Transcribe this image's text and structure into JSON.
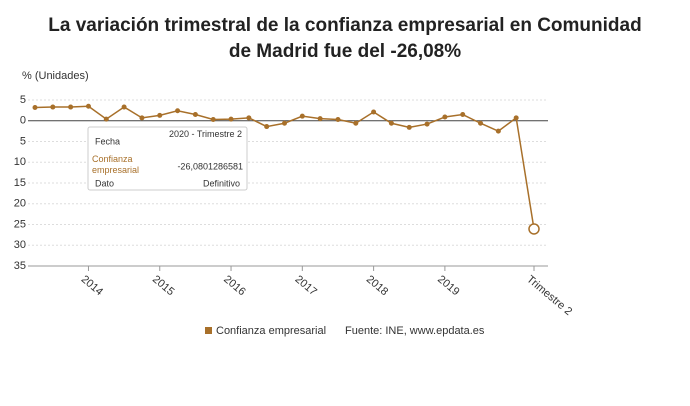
{
  "chart_data": {
    "type": "line",
    "title_lines": [
      "La variación trimestral de la confianza empresarial en Comunidad",
      "de Madrid fue del -26,08%"
    ],
    "y_axis_label": "% (Unidades)",
    "categories": [
      null,
      null,
      null,
      "2014",
      null,
      null,
      null,
      "2015",
      null,
      null,
      null,
      "2016",
      null,
      null,
      null,
      "2017",
      null,
      null,
      null,
      "2018",
      null,
      null,
      null,
      "2019",
      null,
      null,
      null,
      null,
      "Trimestre 2"
    ],
    "series": [
      {
        "name": "Confianza empresarial",
        "color": "#a8702a",
        "values": [
          3.2,
          3.3,
          3.3,
          3.5,
          0.4,
          3.3,
          0.7,
          1.3,
          2.4,
          1.5,
          0.3,
          0.4,
          0.7,
          -1.4,
          -0.6,
          1.1,
          0.5,
          0.3,
          -0.6,
          2.1,
          -0.6,
          -1.6,
          -0.8,
          0.9,
          1.5,
          -0.6,
          -2.5,
          0.7,
          -26.08
        ]
      }
    ],
    "ylim": [
      -35,
      5
    ],
    "yticks": [
      {
        "value": 5,
        "label": "5"
      },
      0,
      {
        "value": -5,
        "label": "5"
      },
      {
        "value": -10,
        "label": "10"
      },
      {
        "value": -15,
        "label": "15"
      },
      {
        "value": -20,
        "label": "20"
      },
      {
        "value": -25,
        "label": "25"
      },
      {
        "value": -30,
        "label": "30"
      },
      {
        "value": -35,
        "label": "35"
      }
    ],
    "grid": true,
    "tooltip": {
      "rows": [
        [
          "Fecha",
          "2020 - Trimestre 2"
        ],
        [
          "Confianza empresarial",
          "-26,0801286581"
        ],
        [
          "Dato",
          "Definitivo"
        ]
      ]
    },
    "source": "Fuente: INE, www.epdata.es"
  }
}
